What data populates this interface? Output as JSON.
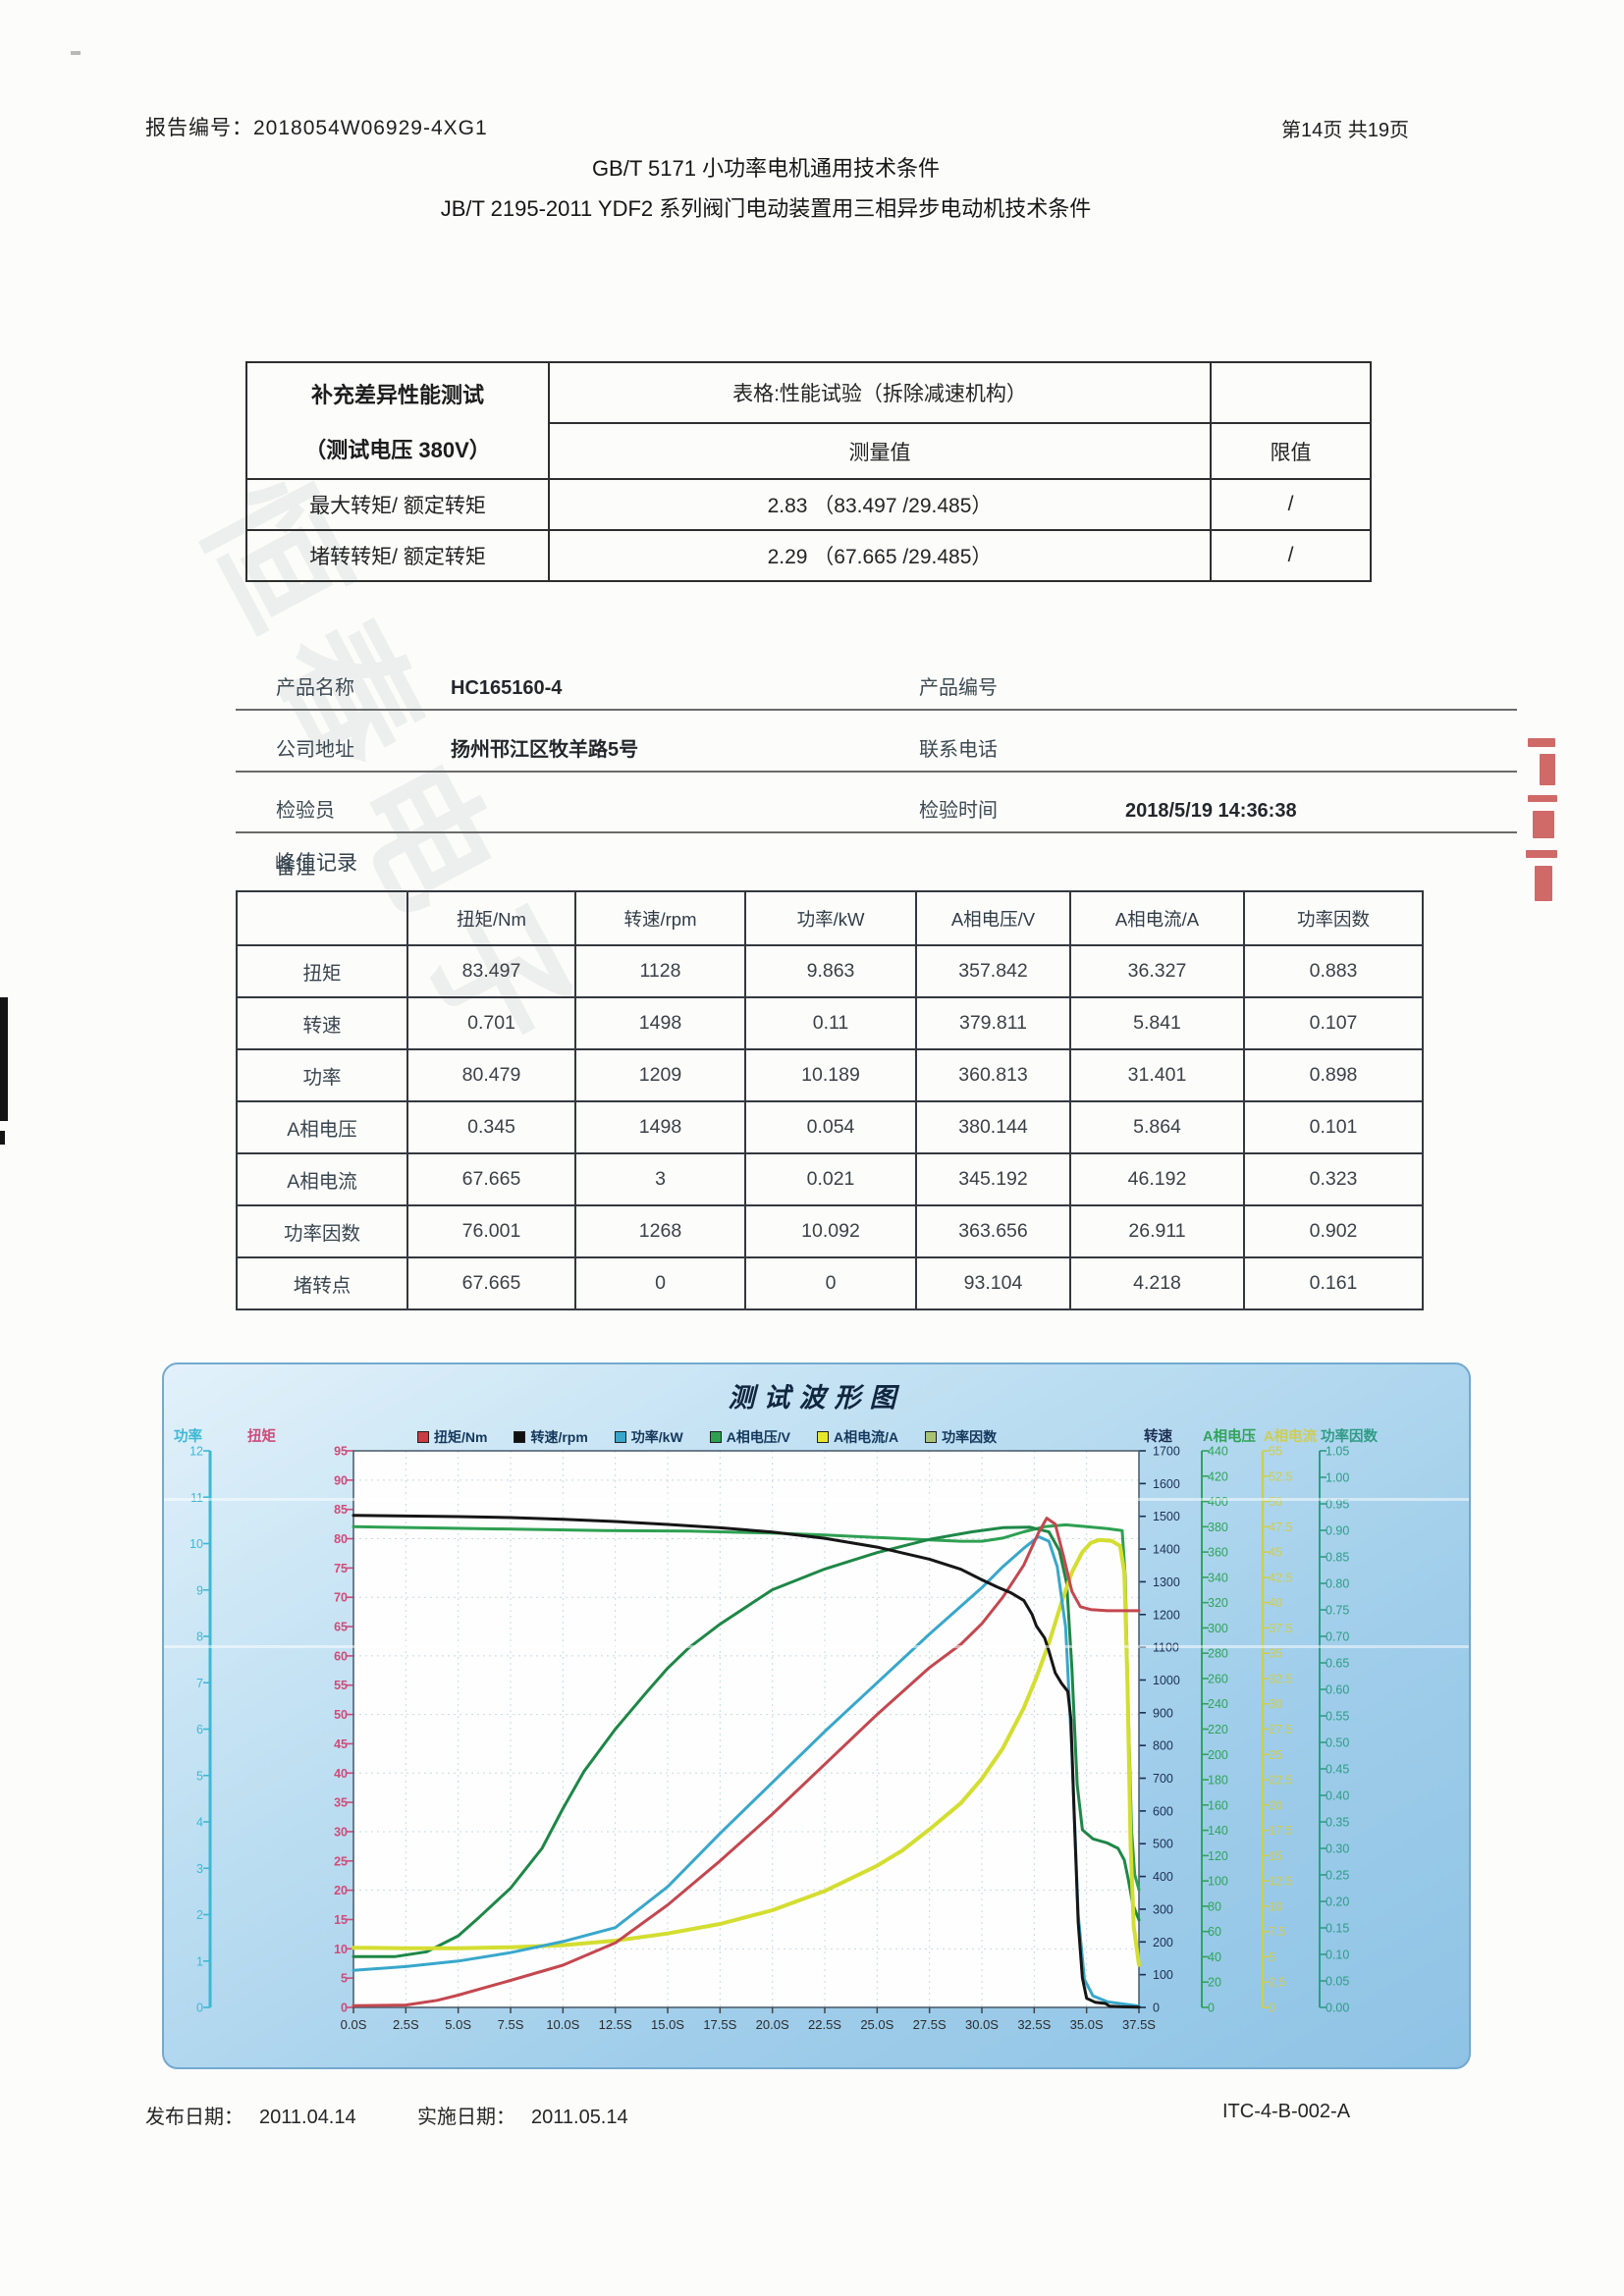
{
  "page": {
    "report_label": "报告编号：2018054W06929-4XG1",
    "page_info": "第14页 共19页",
    "title_line1": "GB/T 5171  小功率电机通用技术条件",
    "title_line2": "JB/T 2195-2011 YDF2 系列阀门电动装置用三相异步电动机技术条件",
    "footer": {
      "publish_label": "发布日期：",
      "publish_date": "2011.04.14",
      "implement_label": "实施日期：",
      "implement_date": "2011.05.14",
      "doc_code": "ITC-4-B-002-A"
    }
  },
  "summary_table": {
    "header_left_line1": "补充差异性能测试",
    "header_left_line2": "（测试电压 380V）",
    "header_right_top": "表格:性能试验（拆除减速机构）",
    "header_measured": "测量值",
    "header_limit": "限值",
    "rows": [
      {
        "label": "最大转矩/ 额定转矩",
        "measured": "2.83 （83.497 /29.485）",
        "limit": "/"
      },
      {
        "label": "堵转转矩/ 额定转矩",
        "measured": "2.29 （67.665 /29.485）",
        "limit": "/"
      }
    ]
  },
  "info_fields": {
    "rows": [
      [
        {
          "label": "产品名称",
          "value": "HC165160-4"
        },
        {
          "label": "产品编号",
          "value": ""
        }
      ],
      [
        {
          "label": "公司地址",
          "value": "扬州邗江区牧羊路5号"
        },
        {
          "label": "联系电话",
          "value": ""
        }
      ],
      [
        {
          "label": "检验员",
          "value": ""
        },
        {
          "label": "检验时间",
          "value": "2018/5/19 14:36:38"
        }
      ],
      [
        {
          "label": "备注",
          "value": ""
        }
      ]
    ]
  },
  "peak_section": {
    "title": "峰值记录",
    "columns": [
      "",
      "扭矩/Nm",
      "转速/rpm",
      "功率/kW",
      "A相电压/V",
      "A相电流/A",
      "功率因数"
    ],
    "rows": [
      {
        "label": "扭矩",
        "values": [
          "83.497",
          "1128",
          "9.863",
          "357.842",
          "36.327",
          "0.883"
        ]
      },
      {
        "label": "转速",
        "values": [
          "0.701",
          "1498",
          "0.11",
          "379.811",
          "5.841",
          "0.107"
        ]
      },
      {
        "label": "功率",
        "values": [
          "80.479",
          "1209",
          "10.189",
          "360.813",
          "31.401",
          "0.898"
        ]
      },
      {
        "label": "A相电压",
        "values": [
          "0.345",
          "1498",
          "0.054",
          "380.144",
          "5.864",
          "0.101"
        ]
      },
      {
        "label": "A相电流",
        "values": [
          "67.665",
          "3",
          "0.021",
          "345.192",
          "46.192",
          "0.323"
        ]
      },
      {
        "label": "功率因数",
        "values": [
          "76.001",
          "1268",
          "10.092",
          "363.656",
          "26.911",
          "0.902"
        ]
      },
      {
        "label": "堵转点",
        "values": [
          "67.665",
          "0",
          "0",
          "93.104",
          "4.218",
          "0.161"
        ]
      }
    ]
  },
  "watermark": {
    "gray": "恒春电子",
    "white": "有限公司"
  },
  "chart_data": {
    "type": "line",
    "title": "测试波形图",
    "x_unit": "S",
    "x_range": [
      0,
      37.5
    ],
    "x_ticks": [
      "0.0S",
      "2.5S",
      "5.0S",
      "7.5S",
      "10.0S",
      "12.5S",
      "15.0S",
      "17.5S",
      "20.0S",
      "22.5S",
      "25.0S",
      "27.5S",
      "30.0S",
      "32.5S",
      "35.0S",
      "37.5S"
    ],
    "grid": true,
    "legend_position": "top",
    "axes": [
      {
        "id": "power",
        "label": "功率",
        "side": "left",
        "min": 0,
        "max": 12,
        "step": 1,
        "color": "#3cb8d4"
      },
      {
        "id": "torque",
        "label": "扭矩",
        "side": "left",
        "min": 0,
        "max": 95,
        "step": 5,
        "color": "#cf4b78"
      },
      {
        "id": "speed",
        "label": "转速",
        "side": "right",
        "min": 0,
        "max": 1700,
        "step": 100,
        "color": "#1c2f52"
      },
      {
        "id": "voltage",
        "label": "A相电压",
        "side": "right",
        "min": 0,
        "max": 440,
        "step": 20,
        "color": "#31a35a"
      },
      {
        "id": "current",
        "label": "A相电流",
        "side": "right",
        "min": 0,
        "max": 55,
        "step": 2.5,
        "color": "#cfcd52"
      },
      {
        "id": "pf",
        "label": "功率因数",
        "side": "right",
        "min": 0,
        "max": 1.05,
        "step": 0.05,
        "color": "#2f9c86"
      }
    ],
    "series": [
      {
        "name": "A相电压/V",
        "axis": "voltage",
        "color": "#2ea052",
        "legend_color": "#2ea052",
        "width": 3,
        "points": [
          [
            0,
            380
          ],
          [
            4,
            379
          ],
          [
            8,
            378
          ],
          [
            12,
            377
          ],
          [
            16,
            376.5
          ],
          [
            20,
            375
          ],
          [
            22.5,
            373.5
          ],
          [
            25,
            371.5
          ],
          [
            27.5,
            369.5
          ],
          [
            29,
            368.5
          ],
          [
            30,
            368.5
          ],
          [
            31,
            371
          ],
          [
            32,
            376
          ],
          [
            33,
            380
          ],
          [
            34,
            381.5
          ],
          [
            35,
            380
          ],
          [
            36,
            378.5
          ],
          [
            36.7,
            377
          ],
          [
            36.85,
            340
          ],
          [
            37,
            230
          ],
          [
            37.15,
            140
          ],
          [
            37.3,
            105
          ],
          [
            37.5,
            93
          ]
        ]
      },
      {
        "name": "功率因数",
        "axis": "pf",
        "color": "#1e8747",
        "legend_color": "#a9c273",
        "width": 3,
        "points": [
          [
            0,
            0.096
          ],
          [
            2,
            0.096
          ],
          [
            3.5,
            0.105
          ],
          [
            5,
            0.135
          ],
          [
            6,
            0.17
          ],
          [
            7.5,
            0.225
          ],
          [
            9,
            0.3
          ],
          [
            10,
            0.375
          ],
          [
            11,
            0.445
          ],
          [
            12.5,
            0.525
          ],
          [
            14,
            0.595
          ],
          [
            15,
            0.64
          ],
          [
            16,
            0.678
          ],
          [
            17.5,
            0.723
          ],
          [
            19,
            0.762
          ],
          [
            20,
            0.788
          ],
          [
            22.5,
            0.827
          ],
          [
            25,
            0.858
          ],
          [
            27.5,
            0.883
          ],
          [
            29.5,
            0.897
          ],
          [
            31,
            0.905
          ],
          [
            32.3,
            0.906
          ],
          [
            33.2,
            0.897
          ],
          [
            33.7,
            0.862
          ],
          [
            34.05,
            0.8
          ],
          [
            34.3,
            0.64
          ],
          [
            34.55,
            0.42
          ],
          [
            34.8,
            0.335
          ],
          [
            35.3,
            0.318
          ],
          [
            36,
            0.31
          ],
          [
            36.5,
            0.3
          ],
          [
            36.8,
            0.278
          ],
          [
            37,
            0.24
          ],
          [
            37.2,
            0.195
          ],
          [
            37.5,
            0.165
          ]
        ]
      },
      {
        "name": "A相电流/A",
        "axis": "current",
        "color": "#d3de30",
        "legend_color": "#e6e62e",
        "width": 4,
        "points": [
          [
            0,
            5.9
          ],
          [
            2.5,
            5.85
          ],
          [
            5,
            5.85
          ],
          [
            7.5,
            5.95
          ],
          [
            10,
            6.15
          ],
          [
            12.5,
            6.6
          ],
          [
            15,
            7.3
          ],
          [
            17.5,
            8.25
          ],
          [
            20,
            9.6
          ],
          [
            22.5,
            11.5
          ],
          [
            25,
            14
          ],
          [
            26.2,
            15.5
          ],
          [
            27.5,
            17.6
          ],
          [
            29,
            20.2
          ],
          [
            30,
            22.6
          ],
          [
            31,
            25.6
          ],
          [
            32,
            29.6
          ],
          [
            32.6,
            32.6
          ],
          [
            33.2,
            36
          ],
          [
            33.8,
            40
          ],
          [
            34.3,
            43
          ],
          [
            34.8,
            45
          ],
          [
            35.2,
            45.9
          ],
          [
            35.6,
            46.2
          ],
          [
            36.2,
            46.1
          ],
          [
            36.6,
            45.6
          ],
          [
            36.8,
            43
          ],
          [
            36.95,
            32
          ],
          [
            37.1,
            16
          ],
          [
            37.25,
            8
          ],
          [
            37.5,
            4.2
          ]
        ]
      },
      {
        "name": "功率/kW",
        "axis": "power",
        "color": "#38a7cb",
        "legend_color": "#3ba6c9",
        "width": 3,
        "points": [
          [
            0,
            0.8
          ],
          [
            2.5,
            0.88
          ],
          [
            5,
            1.0
          ],
          [
            7.5,
            1.18
          ],
          [
            10,
            1.42
          ],
          [
            12.5,
            1.72
          ],
          [
            15,
            2.6
          ],
          [
            17.5,
            3.75
          ],
          [
            20,
            4.85
          ],
          [
            22.5,
            5.95
          ],
          [
            25,
            7.0
          ],
          [
            27.5,
            8.05
          ],
          [
            29,
            8.65
          ],
          [
            30,
            9.05
          ],
          [
            31,
            9.5
          ],
          [
            32,
            9.9
          ],
          [
            32.7,
            10.15
          ],
          [
            33.2,
            10.05
          ],
          [
            33.6,
            9.5
          ],
          [
            34,
            8.2
          ],
          [
            34.3,
            5.5
          ],
          [
            34.6,
            2.0
          ],
          [
            34.9,
            0.6
          ],
          [
            35.3,
            0.25
          ],
          [
            36,
            0.12
          ],
          [
            37,
            0.06
          ],
          [
            37.5,
            0.03
          ]
        ]
      },
      {
        "name": "扭矩/Nm",
        "axis": "torque",
        "color": "#c4474f",
        "legend_color": "#cc3b44",
        "width": 3,
        "points": [
          [
            0,
            0.3
          ],
          [
            2.5,
            0.4
          ],
          [
            4,
            1.2
          ],
          [
            5,
            2.1
          ],
          [
            7.5,
            4.6
          ],
          [
            10,
            7.2
          ],
          [
            12.5,
            11
          ],
          [
            15,
            17.5
          ],
          [
            17.5,
            25
          ],
          [
            20,
            33
          ],
          [
            22.5,
            41.5
          ],
          [
            25,
            50
          ],
          [
            27.5,
            58
          ],
          [
            29,
            62
          ],
          [
            30,
            65.5
          ],
          [
            31,
            70
          ],
          [
            32,
            75.5
          ],
          [
            32.7,
            81
          ],
          [
            33.1,
            83.5
          ],
          [
            33.5,
            82.5
          ],
          [
            33.9,
            77
          ],
          [
            34.3,
            71
          ],
          [
            34.7,
            68.4
          ],
          [
            35.2,
            67.9
          ],
          [
            36,
            67.7
          ],
          [
            37.5,
            67.7
          ]
        ]
      },
      {
        "name": "转速/rpm",
        "axis": "speed",
        "color": "#161616",
        "legend_color": "#111111",
        "width": 3,
        "points": [
          [
            0,
            1503
          ],
          [
            2.5,
            1501
          ],
          [
            5,
            1499
          ],
          [
            7.5,
            1496
          ],
          [
            10,
            1491
          ],
          [
            12.5,
            1484
          ],
          [
            15,
            1475
          ],
          [
            17.5,
            1465
          ],
          [
            20,
            1452
          ],
          [
            22.5,
            1433
          ],
          [
            25,
            1406
          ],
          [
            27.5,
            1369
          ],
          [
            29,
            1338
          ],
          [
            30,
            1306
          ],
          [
            30.7,
            1285
          ],
          [
            31.4,
            1266
          ],
          [
            32,
            1243
          ],
          [
            32.4,
            1200
          ],
          [
            32.6,
            1165
          ],
          [
            33,
            1128
          ],
          [
            33.2,
            1088
          ],
          [
            33.5,
            1022
          ],
          [
            33.8,
            990
          ],
          [
            34.1,
            965
          ],
          [
            34.25,
            880
          ],
          [
            34.4,
            600
          ],
          [
            34.6,
            260
          ],
          [
            34.8,
            90
          ],
          [
            35,
            28
          ],
          [
            35.4,
            16
          ],
          [
            35.9,
            12
          ],
          [
            36.1,
            4
          ],
          [
            36.6,
            2
          ],
          [
            37.5,
            1
          ]
        ]
      }
    ],
    "legend_order": [
      "扭矩/Nm",
      "转速/rpm",
      "功率/kW",
      "A相电压/V",
      "A相电流/A",
      "功率因数"
    ]
  }
}
